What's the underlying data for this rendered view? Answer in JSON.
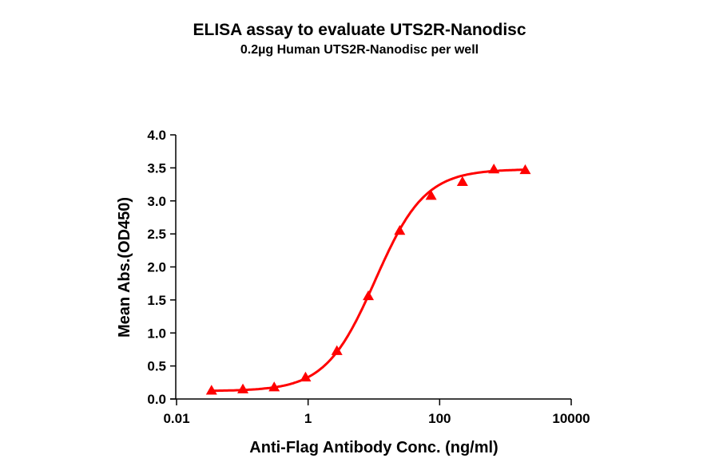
{
  "title": "ELISA assay to evaluate UTS2R-Nanodisc",
  "subtitle": "0.2µg Human UTS2R-Nanodisc per well",
  "colors": {
    "series": "#ff0000",
    "axis": "#000000",
    "background": "#ffffff"
  },
  "chart_data": {
    "type": "scatter",
    "title": "ELISA assay to evaluate UTS2R-Nanodisc",
    "subtitle": "0.2µg Human UTS2R-Nanodisc per well",
    "xlabel": "Anti-Flag Antibody Conc. (ng/ml)",
    "ylabel": "Mean Abs.(OD450)",
    "xscale": "log",
    "xlim": [
      0.01,
      10000
    ],
    "ylim": [
      0.0,
      4.0
    ],
    "x_ticks": [
      "0.01",
      "1",
      "100",
      "10000"
    ],
    "y_ticks": [
      "0.0",
      "0.5",
      "1.0",
      "1.5",
      "2.0",
      "2.5",
      "3.0",
      "3.5",
      "4.0"
    ],
    "grid": false,
    "legend": null,
    "series": [
      {
        "name": "UTS2R-Nanodisc",
        "marker": "triangle",
        "color": "#ff0000",
        "fit": "sigmoidal (4PL)",
        "x": [
          0.034,
          0.102,
          0.305,
          0.914,
          2.74,
          8.23,
          24.7,
          74.1,
          222,
          667,
          2000
        ],
        "y": [
          0.13,
          0.15,
          0.18,
          0.33,
          0.73,
          1.56,
          2.55,
          3.08,
          3.29,
          3.48,
          3.47
        ]
      }
    ]
  }
}
